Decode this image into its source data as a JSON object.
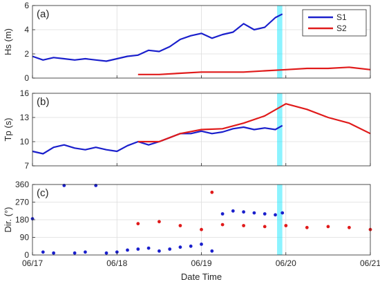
{
  "figure": {
    "xlabel": "Date Time",
    "xtick_labels": [
      "06/17",
      "06/18",
      "06/19",
      "06/20",
      "06/21"
    ],
    "highlight_color": "#00e5ff"
  },
  "legend": {
    "placement": "top-right of panel (a)",
    "entries": [
      {
        "name": "S1",
        "color": "#1a1fcc"
      },
      {
        "name": "S2",
        "color": "#e01a1a"
      }
    ]
  },
  "chart_data": [
    {
      "panel_label": "(a)",
      "type": "line",
      "ylabel": "Hs (m)",
      "ylim": [
        0,
        6
      ],
      "yticks": [
        0,
        2,
        4,
        6
      ],
      "xlim": [
        "06/17 00:00",
        "06/21 00:00"
      ],
      "grid": true,
      "highlight_x": [
        "06/19 21:30",
        "06/19 23:00"
      ],
      "series": [
        {
          "name": "S1",
          "color": "#1a1fcc",
          "x": [
            "06/17 00:00",
            "06/17 03:00",
            "06/17 06:00",
            "06/17 09:00",
            "06/17 12:00",
            "06/17 15:00",
            "06/17 18:00",
            "06/17 21:00",
            "06/18 00:00",
            "06/18 03:00",
            "06/18 06:00",
            "06/18 09:00",
            "06/18 12:00",
            "06/18 15:00",
            "06/18 18:00",
            "06/18 21:00",
            "06/19 00:00",
            "06/19 03:00",
            "06/19 06:00",
            "06/19 09:00",
            "06/19 12:00",
            "06/19 15:00",
            "06/19 18:00",
            "06/19 21:00",
            "06/19 23:00"
          ],
          "y": [
            1.8,
            1.5,
            1.7,
            1.6,
            1.5,
            1.6,
            1.5,
            1.4,
            1.6,
            1.8,
            1.9,
            2.3,
            2.2,
            2.6,
            3.2,
            3.5,
            3.7,
            3.3,
            3.6,
            3.8,
            4.5,
            4.0,
            4.2,
            5.0,
            5.3
          ]
        },
        {
          "name": "S2",
          "color": "#e01a1a",
          "x": [
            "06/18 06:00",
            "06/18 12:00",
            "06/18 18:00",
            "06/19 00:00",
            "06/19 06:00",
            "06/19 12:00",
            "06/19 18:00",
            "06/20 00:00",
            "06/20 06:00",
            "06/20 12:00",
            "06/20 18:00",
            "06/21 00:00"
          ],
          "y": [
            0.3,
            0.3,
            0.4,
            0.5,
            0.5,
            0.5,
            0.6,
            0.7,
            0.8,
            0.8,
            0.9,
            0.7
          ]
        }
      ]
    },
    {
      "panel_label": "(b)",
      "type": "line",
      "ylabel": "Tp (s)",
      "ylim": [
        7,
        16
      ],
      "yticks": [
        7,
        10,
        13,
        16
      ],
      "xlim": [
        "06/17 00:00",
        "06/21 00:00"
      ],
      "grid": true,
      "highlight_x": [
        "06/19 21:30",
        "06/19 23:00"
      ],
      "series": [
        {
          "name": "S1",
          "color": "#1a1fcc",
          "x": [
            "06/17 00:00",
            "06/17 03:00",
            "06/17 06:00",
            "06/17 09:00",
            "06/17 12:00",
            "06/17 15:00",
            "06/17 18:00",
            "06/17 21:00",
            "06/18 00:00",
            "06/18 03:00",
            "06/18 06:00",
            "06/18 09:00",
            "06/18 12:00",
            "06/18 15:00",
            "06/18 18:00",
            "06/18 21:00",
            "06/19 00:00",
            "06/19 03:00",
            "06/19 06:00",
            "06/19 09:00",
            "06/19 12:00",
            "06/19 15:00",
            "06/19 18:00",
            "06/19 21:00",
            "06/19 23:00"
          ],
          "y": [
            8.8,
            8.5,
            9.3,
            9.6,
            9.2,
            9.0,
            9.3,
            9.0,
            8.8,
            9.5,
            10.0,
            9.6,
            10.0,
            10.5,
            11.0,
            11.0,
            11.3,
            11.0,
            11.2,
            11.6,
            11.8,
            11.5,
            11.7,
            11.5,
            12.0
          ]
        },
        {
          "name": "S2",
          "color": "#e01a1a",
          "x": [
            "06/18 06:00",
            "06/18 12:00",
            "06/18 18:00",
            "06/19 00:00",
            "06/19 06:00",
            "06/19 12:00",
            "06/19 18:00",
            "06/20 00:00",
            "06/20 06:00",
            "06/20 12:00",
            "06/20 18:00",
            "06/21 00:00"
          ],
          "y": [
            10.0,
            10.0,
            11.0,
            11.5,
            11.6,
            12.3,
            13.2,
            14.7,
            14.0,
            13.0,
            12.3,
            11.0
          ]
        }
      ]
    },
    {
      "panel_label": "(c)",
      "type": "scatter",
      "ylabel": "Dir. (°)",
      "ylim": [
        0,
        360
      ],
      "yticks": [
        0,
        90,
        180,
        270,
        360
      ],
      "xlim": [
        "06/17 00:00",
        "06/21 00:00"
      ],
      "grid": true,
      "highlight_x": [
        "06/19 21:30",
        "06/19 23:00"
      ],
      "series": [
        {
          "name": "S1",
          "color": "#1a1fcc",
          "x": [
            "06/17 00:00",
            "06/17 03:00",
            "06/17 06:00",
            "06/17 09:00",
            "06/17 12:00",
            "06/17 15:00",
            "06/17 18:00",
            "06/17 21:00",
            "06/18 00:00",
            "06/18 03:00",
            "06/18 06:00",
            "06/18 09:00",
            "06/18 12:00",
            "06/18 15:00",
            "06/18 18:00",
            "06/18 21:00",
            "06/19 00:00",
            "06/19 03:00",
            "06/19 06:00",
            "06/19 09:00",
            "06/19 12:00",
            "06/19 15:00",
            "06/19 18:00",
            "06/19 21:00",
            "06/19 23:00"
          ],
          "y": [
            185,
            15,
            10,
            355,
            10,
            15,
            355,
            10,
            15,
            25,
            30,
            35,
            20,
            30,
            40,
            45,
            55,
            20,
            210,
            225,
            220,
            215,
            210,
            205,
            215
          ]
        },
        {
          "name": "S2",
          "color": "#e01a1a",
          "x": [
            "06/18 06:00",
            "06/18 12:00",
            "06/18 18:00",
            "06/19 00:00",
            "06/19 03:00",
            "06/19 06:00",
            "06/19 12:00",
            "06/19 18:00",
            "06/20 00:00",
            "06/20 06:00",
            "06/20 12:00",
            "06/20 18:00",
            "06/21 00:00"
          ],
          "y": [
            160,
            170,
            150,
            130,
            320,
            155,
            150,
            145,
            150,
            140,
            145,
            140,
            130
          ]
        }
      ]
    }
  ]
}
